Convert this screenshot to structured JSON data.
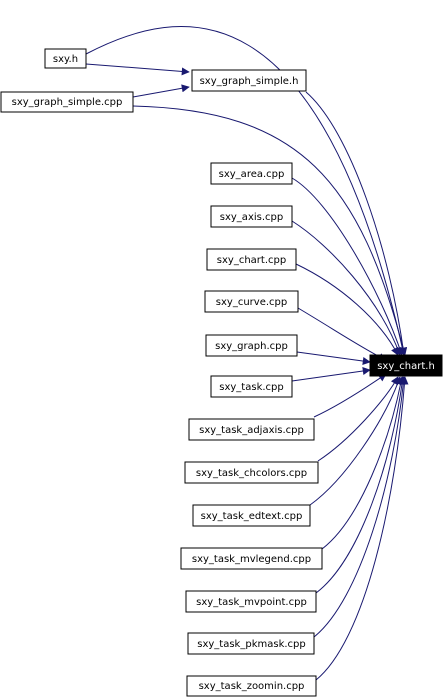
{
  "diagram": {
    "nodes": {
      "sxy_h": "sxy.h",
      "sxy_graph_simple_h": "sxy_graph_simple.h",
      "sxy_graph_simple_cpp": "sxy_graph_simple.cpp",
      "sxy_area_cpp": "sxy_area.cpp",
      "sxy_axis_cpp": "sxy_axis.cpp",
      "sxy_chart_cpp": "sxy_chart.cpp",
      "sxy_curve_cpp": "sxy_curve.cpp",
      "sxy_graph_cpp": "sxy_graph.cpp",
      "sxy_task_cpp": "sxy_task.cpp",
      "sxy_task_adjaxis_cpp": "sxy_task_adjaxis.cpp",
      "sxy_task_chcolors_cpp": "sxy_task_chcolors.cpp",
      "sxy_task_edtext_cpp": "sxy_task_edtext.cpp",
      "sxy_task_mvlegend_cpp": "sxy_task_mvlegend.cpp",
      "sxy_task_mvpoint_cpp": "sxy_task_mvpoint.cpp",
      "sxy_task_pkmask_cpp": "sxy_task_pkmask.cpp",
      "sxy_task_zoomin_cpp": "sxy_task_zoomin.cpp",
      "sxy_chart_h": "sxy_chart.h"
    },
    "highlighted_node": "sxy_chart_h",
    "edge_color": "#191970",
    "highlight_fill": "#000000",
    "highlight_text_color": "#ffffff"
  }
}
